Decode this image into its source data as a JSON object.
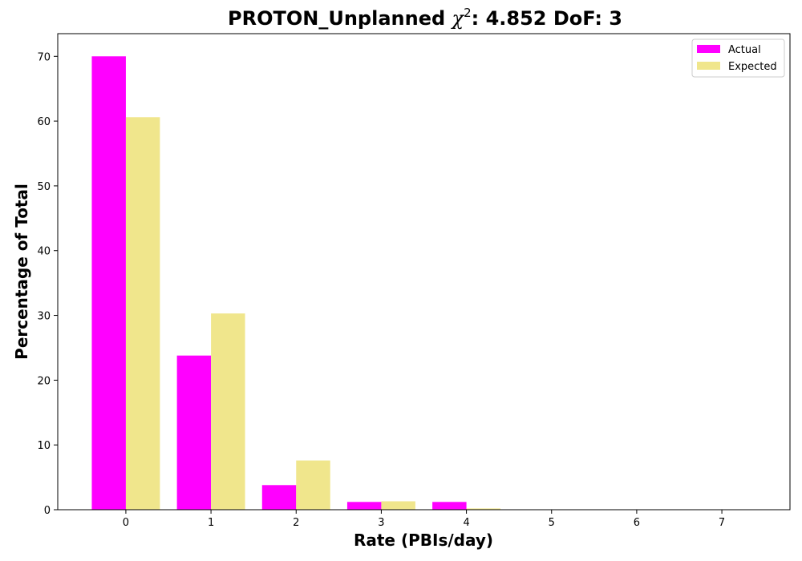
{
  "chart_data": {
    "type": "bar",
    "title_prefix": "PROTON_Unplanned ",
    "title_symbol": "χ",
    "title_superscript": "2",
    "title_suffix": ": 4.852 DoF: 3",
    "xlabel": "Rate (PBIs/day)",
    "ylabel": "Percentage of Total",
    "categories": [
      "0",
      "1",
      "2",
      "3",
      "4",
      "5",
      "6",
      "7"
    ],
    "x": [
      0,
      1,
      2,
      3,
      4,
      5,
      6,
      7
    ],
    "series": [
      {
        "name": "Actual",
        "color": "#ff00ff",
        "values": [
          70.0,
          23.8,
          3.8,
          1.2,
          1.2,
          0.0,
          0.0,
          0.0
        ]
      },
      {
        "name": "Expected",
        "color": "#f0e68c",
        "values": [
          60.6,
          30.3,
          7.6,
          1.3,
          0.2,
          0.0,
          0.0,
          0.0
        ]
      }
    ],
    "xlim": [
      -0.8,
      7.8
    ],
    "ylim": [
      0,
      73.5
    ],
    "yticks": [
      0,
      10,
      20,
      30,
      40,
      50,
      60,
      70
    ],
    "legend_position": "top-right",
    "grid": false
  }
}
